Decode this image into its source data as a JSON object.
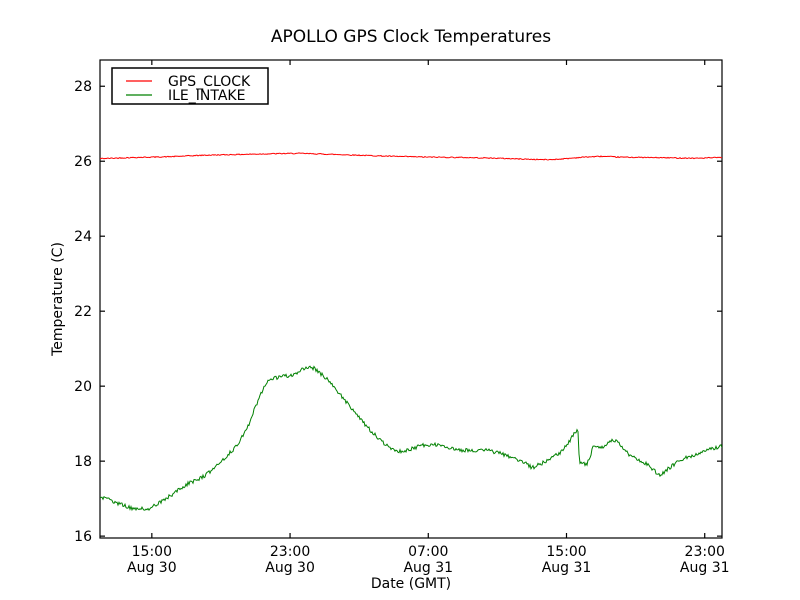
{
  "chart_data": {
    "type": "line",
    "title": "APOLLO GPS Clock Temperatures",
    "xlabel": "Date (GMT)",
    "ylabel": "Temperature (C)",
    "yticks": [
      16,
      18,
      20,
      22,
      24,
      26,
      28
    ],
    "ylim": [
      15.95,
      28.7
    ],
    "x_axis_unit": "hours since Aug 30 12:00 GMT",
    "xlim_hours": [
      0,
      36
    ],
    "xticks": [
      {
        "hours": 3,
        "time": "15:00",
        "date": "Aug 30"
      },
      {
        "hours": 11,
        "time": "23:00",
        "date": "Aug 30"
      },
      {
        "hours": 19,
        "time": "07:00",
        "date": "Aug 31"
      },
      {
        "hours": 27,
        "time": "15:00",
        "date": "Aug 31"
      },
      {
        "hours": 35,
        "time": "23:00",
        "date": "Aug 31"
      }
    ],
    "grid": false,
    "tick_style": "inward-all-sides",
    "legend": {
      "position": "upper-left",
      "border_color": "#000000",
      "background": "#ffffff"
    },
    "series": [
      {
        "name": "GPS_CLOCK",
        "color": "#ff0000",
        "noise_amplitude": 0.013,
        "anchors_hours_value": [
          [
            0,
            26.07
          ],
          [
            2,
            26.1
          ],
          [
            4,
            26.12
          ],
          [
            6,
            26.16
          ],
          [
            8,
            26.18
          ],
          [
            10,
            26.2
          ],
          [
            11.5,
            26.21
          ],
          [
            13,
            26.19
          ],
          [
            15,
            26.16
          ],
          [
            17,
            26.13
          ],
          [
            19,
            26.11
          ],
          [
            21,
            26.1
          ],
          [
            23,
            26.08
          ],
          [
            25,
            26.05
          ],
          [
            26,
            26.04
          ],
          [
            27,
            26.07
          ],
          [
            28,
            26.11
          ],
          [
            29,
            26.13
          ],
          [
            30,
            26.11
          ],
          [
            31.5,
            26.1
          ],
          [
            33,
            26.09
          ],
          [
            34.5,
            26.08
          ],
          [
            36,
            26.1
          ]
        ]
      },
      {
        "name": "ILE_INTAKE",
        "color": "#008000",
        "noise_amplitude": 0.05,
        "anchors_hours_value": [
          [
            0,
            17.05
          ],
          [
            0.8,
            16.92
          ],
          [
            1.6,
            16.78
          ],
          [
            2.1,
            16.72
          ],
          [
            2.9,
            16.74
          ],
          [
            3.5,
            16.9
          ],
          [
            4.2,
            17.12
          ],
          [
            5.0,
            17.38
          ],
          [
            5.6,
            17.5
          ],
          [
            6.1,
            17.62
          ],
          [
            6.7,
            17.85
          ],
          [
            7.3,
            18.12
          ],
          [
            7.9,
            18.4
          ],
          [
            8.5,
            18.85
          ],
          [
            9.0,
            19.45
          ],
          [
            9.5,
            20.0
          ],
          [
            9.9,
            20.2
          ],
          [
            10.5,
            20.25
          ],
          [
            11.1,
            20.3
          ],
          [
            11.6,
            20.4
          ],
          [
            11.9,
            20.52
          ],
          [
            12.4,
            20.48
          ],
          [
            13.0,
            20.25
          ],
          [
            13.7,
            19.9
          ],
          [
            14.4,
            19.5
          ],
          [
            15.1,
            19.1
          ],
          [
            15.8,
            18.75
          ],
          [
            16.5,
            18.45
          ],
          [
            17.2,
            18.25
          ],
          [
            17.9,
            18.3
          ],
          [
            18.6,
            18.42
          ],
          [
            19.3,
            18.45
          ],
          [
            20.0,
            18.38
          ],
          [
            20.8,
            18.3
          ],
          [
            21.6,
            18.28
          ],
          [
            22.4,
            18.3
          ],
          [
            23.2,
            18.2
          ],
          [
            23.9,
            18.1
          ],
          [
            24.5,
            17.98
          ],
          [
            25.0,
            17.82
          ],
          [
            25.6,
            17.95
          ],
          [
            26.2,
            18.1
          ],
          [
            26.7,
            18.25
          ],
          [
            27.2,
            18.55
          ],
          [
            27.55,
            18.8
          ],
          [
            27.65,
            18.9
          ],
          [
            27.75,
            17.95
          ],
          [
            28.2,
            17.92
          ],
          [
            28.6,
            18.45
          ],
          [
            28.95,
            18.35
          ],
          [
            29.3,
            18.45
          ],
          [
            29.7,
            18.58
          ],
          [
            30.1,
            18.45
          ],
          [
            30.55,
            18.2
          ],
          [
            31.1,
            18.05
          ],
          [
            31.7,
            17.9
          ],
          [
            32.4,
            17.62
          ],
          [
            32.9,
            17.8
          ],
          [
            33.6,
            18.03
          ],
          [
            34.3,
            18.15
          ],
          [
            35.0,
            18.3
          ],
          [
            35.6,
            18.35
          ],
          [
            36.0,
            18.4
          ]
        ]
      }
    ]
  }
}
